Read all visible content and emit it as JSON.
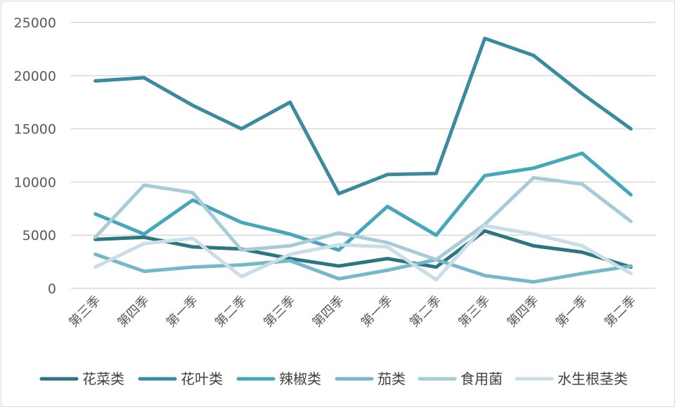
{
  "chart_data": {
    "type": "line",
    "categories": [
      "第三季",
      "第四季",
      "第一季",
      "第二季",
      "第三季",
      "第四季",
      "第一季",
      "第二季",
      "第三季",
      "第四季",
      "第一季",
      "第二季"
    ],
    "ylim": [
      0,
      25000
    ],
    "yticks": [
      0,
      5000,
      10000,
      15000,
      20000,
      25000
    ],
    "grid": true,
    "legend": "bottom",
    "series": [
      {
        "name": "花菜类",
        "color": "#2e7582",
        "values": [
          4600,
          4800,
          3900,
          3700,
          2800,
          2100,
          2800,
          2000,
          5400,
          4000,
          3400,
          2000
        ]
      },
      {
        "name": "花叶类",
        "color": "#3a8aa0",
        "values": [
          19500,
          19800,
          17200,
          15000,
          17500,
          8900,
          10700,
          10800,
          23500,
          21900,
          18300,
          15000
        ]
      },
      {
        "name": "辣椒类",
        "color": "#46a6bc",
        "values": [
          7000,
          5100,
          8300,
          6200,
          5100,
          3600,
          7700,
          5000,
          10600,
          11300,
          12700,
          8800
        ]
      },
      {
        "name": "茄类",
        "color": "#74b8c9",
        "values": [
          3200,
          1600,
          2000,
          2200,
          2600,
          900,
          1700,
          2700,
          1200,
          600,
          1400,
          2100
        ]
      },
      {
        "name": "食用菌",
        "color": "#a7cbd7",
        "values": [
          4800,
          9700,
          9000,
          3600,
          4000,
          5200,
          4300,
          2700,
          6000,
          10400,
          9800,
          6300
        ]
      },
      {
        "name": "水生根茎类",
        "color": "#c9dee6",
        "values": [
          2000,
          4200,
          4700,
          1100,
          3200,
          4100,
          3900,
          800,
          5900,
          5100,
          4000,
          1400
        ]
      }
    ]
  }
}
